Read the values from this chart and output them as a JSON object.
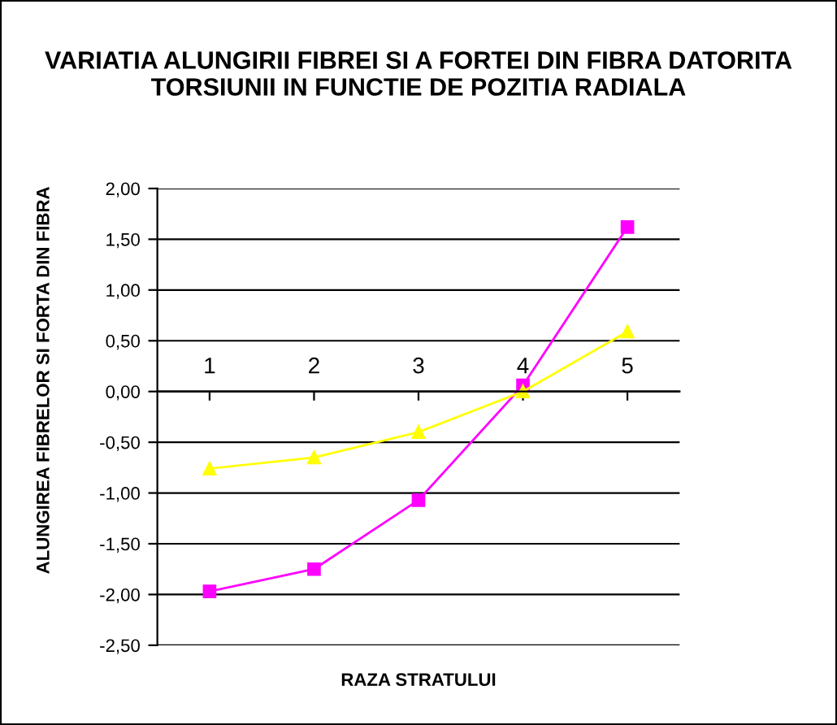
{
  "chart_data": {
    "type": "line",
    "title": "VARIATIA ALUNGIRII FIBREI SI A FORTEI DIN FIBRA DATORITA TORSIUNII IN FUNCTIE DE POZITIA RADIALA",
    "xlabel": "RAZA STRATULUI",
    "ylabel": "ALUNGIREA FIBRELOR SI FORTA DIN FIBRA",
    "categories": [
      "1",
      "2",
      "3",
      "4",
      "5"
    ],
    "series": [
      {
        "color": "#ff00ff",
        "marker": "square",
        "values": [
          -1.97,
          -1.75,
          -1.07,
          0.06,
          1.62
        ]
      },
      {
        "color": "#ffff00",
        "marker": "triangle",
        "values": [
          -0.76,
          -0.65,
          -0.4,
          0.0,
          0.59
        ]
      }
    ],
    "ylim": [
      -2.5,
      2.0
    ],
    "yticks": [
      {
        "value": -2.5,
        "label": "-2,50"
      },
      {
        "value": -2.0,
        "label": "-2,00"
      },
      {
        "value": -1.5,
        "label": "-1,50"
      },
      {
        "value": -1.0,
        "label": "-1,00"
      },
      {
        "value": -0.5,
        "label": "-0,50"
      },
      {
        "value": 0.0,
        "label": "0,00"
      },
      {
        "value": 0.5,
        "label": "0,50"
      },
      {
        "value": 1.0,
        "label": "1,00"
      },
      {
        "value": 1.5,
        "label": "1,50"
      },
      {
        "value": 2.0,
        "label": "2,00"
      }
    ],
    "grid": "y",
    "legend": false,
    "line_style": "solid"
  }
}
